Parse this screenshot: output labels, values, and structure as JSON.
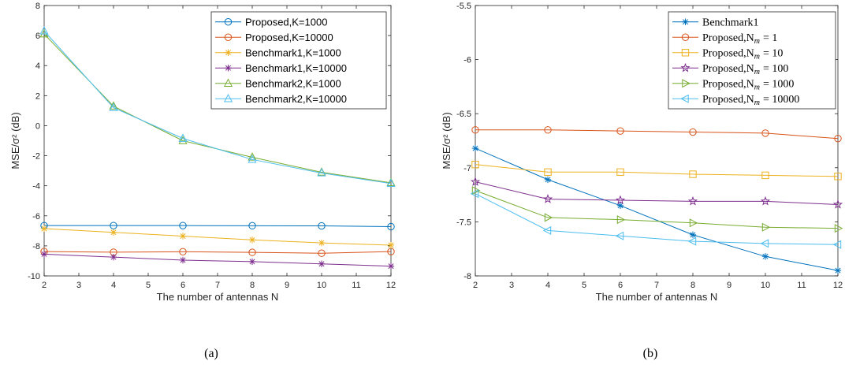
{
  "chart_data": [
    {
      "type": "line",
      "caption": "(a)",
      "xlabel": "The number of antennas N",
      "ylabel": "MSE/σ² (dB)",
      "xlim": [
        2,
        12
      ],
      "ylim": [
        -10,
        8
      ],
      "xticks": [
        2,
        3,
        4,
        5,
        6,
        7,
        8,
        9,
        10,
        11,
        12
      ],
      "yticks": [
        -10,
        -8,
        -6,
        -4,
        -2,
        0,
        2,
        4,
        6,
        8
      ],
      "grid": false,
      "legend": "top-right",
      "x": [
        2,
        4,
        6,
        8,
        10,
        12
      ],
      "series": [
        {
          "name": "Proposed,K=1000",
          "color": "#0072BD",
          "marker": "circle",
          "values": [
            -6.65,
            -6.65,
            -6.65,
            -6.66,
            -6.67,
            -6.72
          ]
        },
        {
          "name": "Proposed,K=10000",
          "color": "#D95319",
          "marker": "circle",
          "values": [
            -8.38,
            -8.42,
            -8.39,
            -8.43,
            -8.49,
            -8.38
          ]
        },
        {
          "name": "Benchmark1,K=1000",
          "color": "#EDB120",
          "marker": "star",
          "values": [
            -6.85,
            -7.1,
            -7.35,
            -7.6,
            -7.8,
            -7.95
          ]
        },
        {
          "name": "Benchmark1,K=10000",
          "color": "#7E2F8E",
          "marker": "star",
          "values": [
            -8.55,
            -8.75,
            -8.95,
            -9.05,
            -9.2,
            -9.35
          ]
        },
        {
          "name": "Benchmark2,K=1000",
          "color": "#77AC30",
          "marker": "triangle-up",
          "values": [
            6.1,
            1.3,
            -1.0,
            -2.1,
            -3.1,
            -3.8
          ]
        },
        {
          "name": "Benchmark2,K=10000",
          "color": "#4DBEEE",
          "marker": "triangle-up",
          "values": [
            6.3,
            1.2,
            -0.85,
            -2.25,
            -3.15,
            -3.85
          ]
        }
      ]
    },
    {
      "type": "line",
      "caption": "(b)",
      "xlabel": "The number of antennas N",
      "ylabel": "MSE/σ² (dB)",
      "xlim": [
        2,
        12
      ],
      "ylim": [
        -8,
        -5.5
      ],
      "xticks": [
        2,
        3,
        4,
        5,
        6,
        7,
        8,
        9,
        10,
        11,
        12
      ],
      "yticks": [
        -8,
        -7.5,
        -7,
        -6.5,
        -6,
        -5.5
      ],
      "grid": false,
      "legend": "top-right",
      "x": [
        2,
        4,
        6,
        8,
        10,
        12
      ],
      "series": [
        {
          "name": "Benchmark1",
          "color": "#0072BD",
          "marker": "star",
          "values": [
            -6.82,
            -7.11,
            -7.35,
            -7.62,
            -7.82,
            -7.95
          ]
        },
        {
          "name": "Proposed,N",
          "sub": "m",
          "suffix": "= 1",
          "color": "#D95319",
          "marker": "circle",
          "values": [
            -6.65,
            -6.65,
            -6.66,
            -6.67,
            -6.68,
            -6.73
          ]
        },
        {
          "name": "Proposed,N",
          "sub": "m",
          "suffix": "= 10",
          "color": "#EDB120",
          "marker": "square",
          "values": [
            -6.97,
            -7.04,
            -7.04,
            -7.06,
            -7.07,
            -7.08
          ]
        },
        {
          "name": "Proposed,N",
          "sub": "m",
          "suffix": "= 100",
          "color": "#7E2F8E",
          "marker": "pentagram",
          "values": [
            -7.13,
            -7.29,
            -7.3,
            -7.31,
            -7.31,
            -7.34
          ]
        },
        {
          "name": "Proposed,N",
          "sub": "m",
          "suffix": "= 1000",
          "color": "#77AC30",
          "marker": "triangle-right",
          "values": [
            -7.21,
            -7.46,
            -7.48,
            -7.51,
            -7.55,
            -7.56
          ]
        },
        {
          "name": "Proposed,N",
          "sub": "m",
          "suffix": "= 10000",
          "color": "#4DBEEE",
          "marker": "triangle-left",
          "values": [
            -7.24,
            -7.58,
            -7.63,
            -7.68,
            -7.7,
            -7.71
          ]
        }
      ]
    }
  ]
}
